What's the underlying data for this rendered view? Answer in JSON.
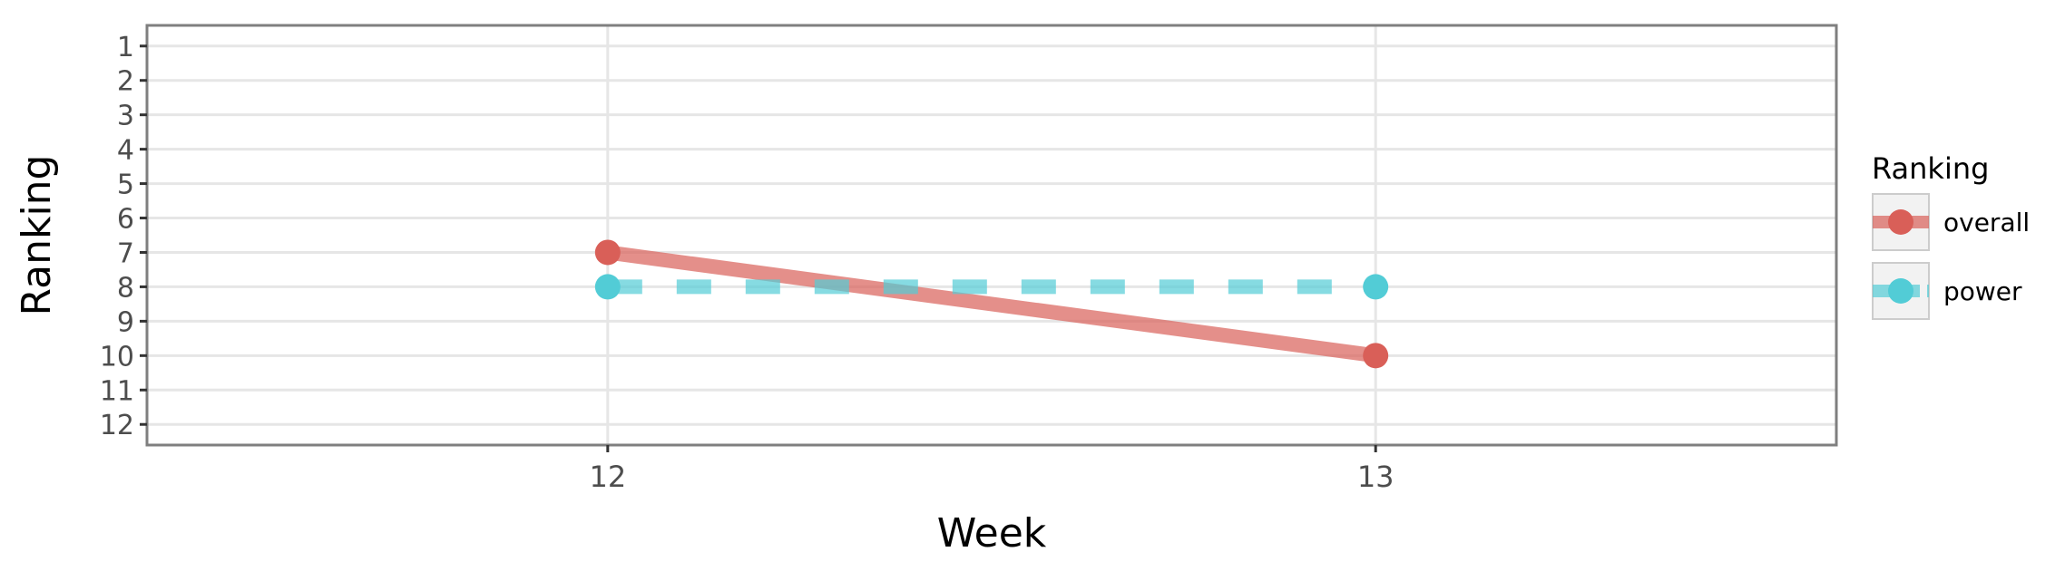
{
  "chart_data": {
    "type": "line",
    "xlabel": "Week",
    "ylabel": "Ranking",
    "x": [
      12,
      13
    ],
    "xlim": [
      11.4,
      13.6
    ],
    "ylim": [
      12.6,
      0.4
    ],
    "y_reversed": true,
    "y_ticks": [
      1,
      2,
      3,
      4,
      5,
      6,
      7,
      8,
      9,
      10,
      11,
      12
    ],
    "x_ticks": [
      12,
      13
    ],
    "grid": true,
    "legend": {
      "title": "Ranking",
      "position": "right"
    },
    "series": [
      {
        "name": "overall",
        "values": [
          7,
          10
        ],
        "color": "#d95f58",
        "line_style": "solid"
      },
      {
        "name": "power",
        "values": [
          8,
          8
        ],
        "color": "#52ccd6",
        "line_style": "dashed"
      }
    ]
  }
}
